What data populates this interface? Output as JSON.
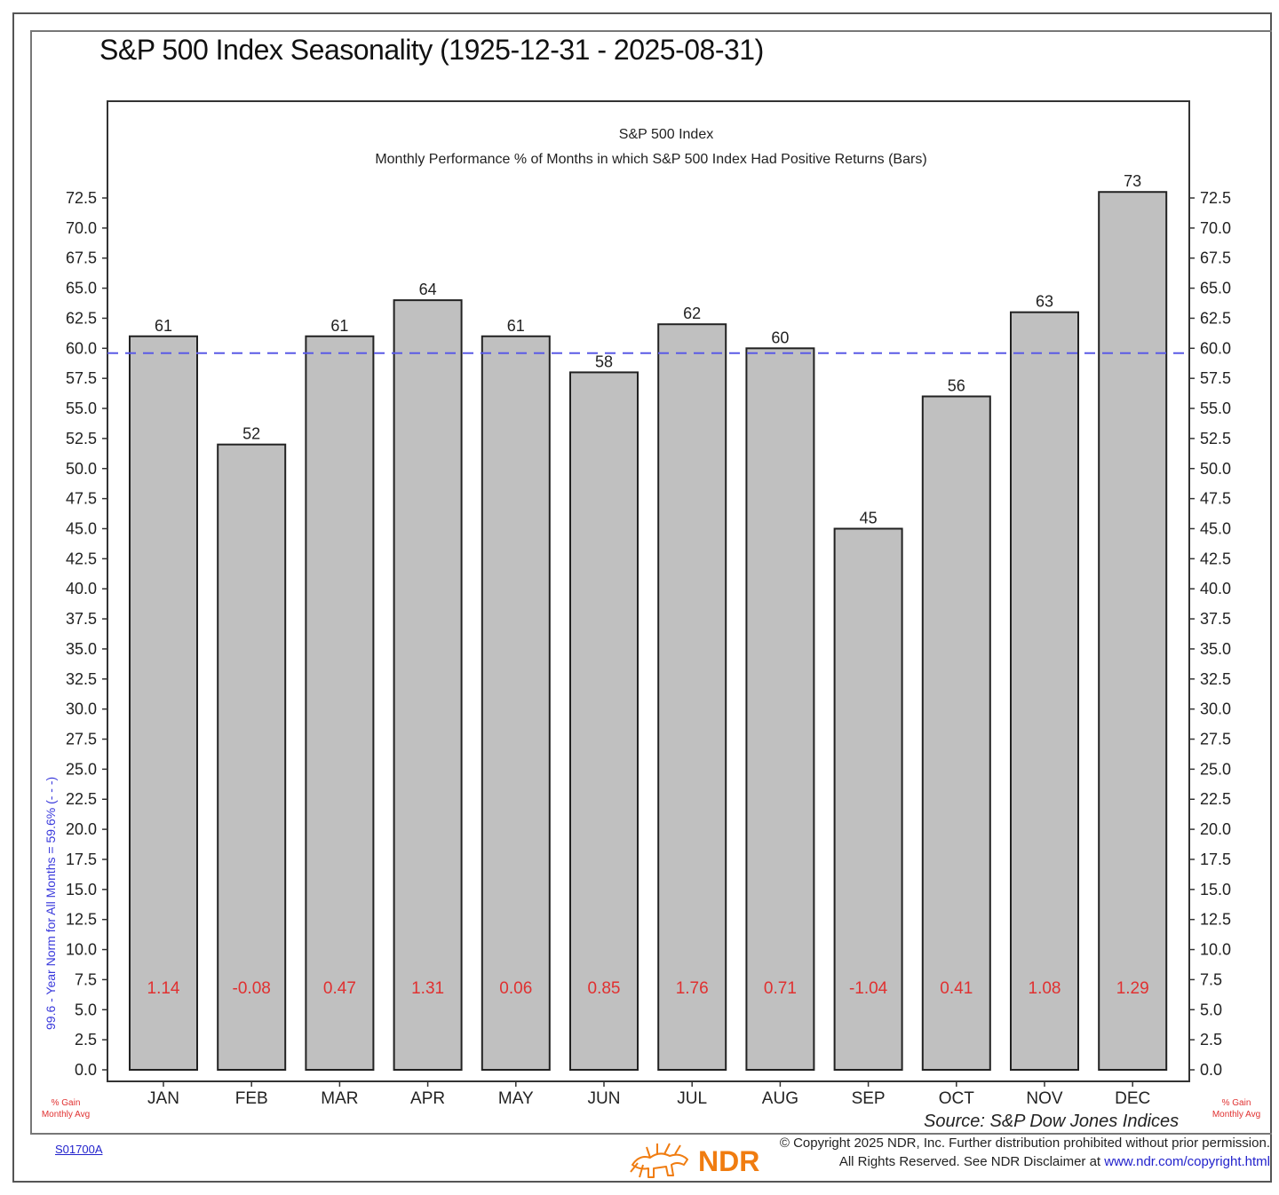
{
  "header": {
    "title": "S&P 500 Index Seasonality (1925-12-31 - 2025-08-31)"
  },
  "chart_data": {
    "type": "bar",
    "title": "S&P 500 Index",
    "subtitle": "Monthly Performance % of Months in which S&P 500 Index Had Positive Returns (Bars)",
    "categories": [
      "JAN",
      "FEB",
      "MAR",
      "APR",
      "MAY",
      "JUN",
      "JUL",
      "AUG",
      "SEP",
      "OCT",
      "NOV",
      "DEC"
    ],
    "series": [
      {
        "values": [
          61,
          52,
          61,
          64,
          61,
          58,
          62,
          60,
          45,
          56,
          63,
          73
        ]
      }
    ],
    "value_labels": [
      "61",
      "52",
      "61",
      "64",
      "61",
      "58",
      "62",
      "60",
      "45",
      "56",
      "63",
      "73"
    ],
    "monthly_avg_gain": [
      "1.14",
      "-0.08",
      "0.47",
      "1.31",
      "0.06",
      "0.85",
      "1.76",
      "0.71",
      "-1.04",
      "0.41",
      "1.08",
      "1.29"
    ],
    "norm_line": {
      "value": 59.6,
      "label": "99.6 - Year Norm for All Months = 59.6% (- - -)",
      "color": "#5a5ae6"
    },
    "ylim": [
      0,
      72.5
    ],
    "yticks": [
      "0.0",
      "2.5",
      "5.0",
      "7.5",
      "10.0",
      "12.5",
      "15.0",
      "17.5",
      "20.0",
      "22.5",
      "25.0",
      "27.5",
      "30.0",
      "32.5",
      "35.0",
      "37.5",
      "40.0",
      "42.5",
      "45.0",
      "47.5",
      "50.0",
      "52.5",
      "55.0",
      "57.5",
      "60.0",
      "62.5",
      "65.0",
      "67.5",
      "70.0",
      "72.5"
    ],
    "bar_color": "#c0c0c0",
    "gain_color": "#e03030",
    "grid": false,
    "axis_left": true,
    "axis_right": true
  },
  "footer": {
    "gain_note_line1": "% Gain",
    "gain_note_line2": "Monthly Avg",
    "source": "Source:  S&P Dow Jones Indices",
    "chart_id": "S01700A",
    "copyright_line1": "© Copyright 2025 NDR, Inc. Further distribution prohibited without prior permission.",
    "copyright_line2": "All Rights Reserved. See NDR Disclaimer at ",
    "copyright_link": "www.ndr.com/copyright.html",
    "logo_text": "NDR",
    "logo_color": "#f07c10"
  }
}
